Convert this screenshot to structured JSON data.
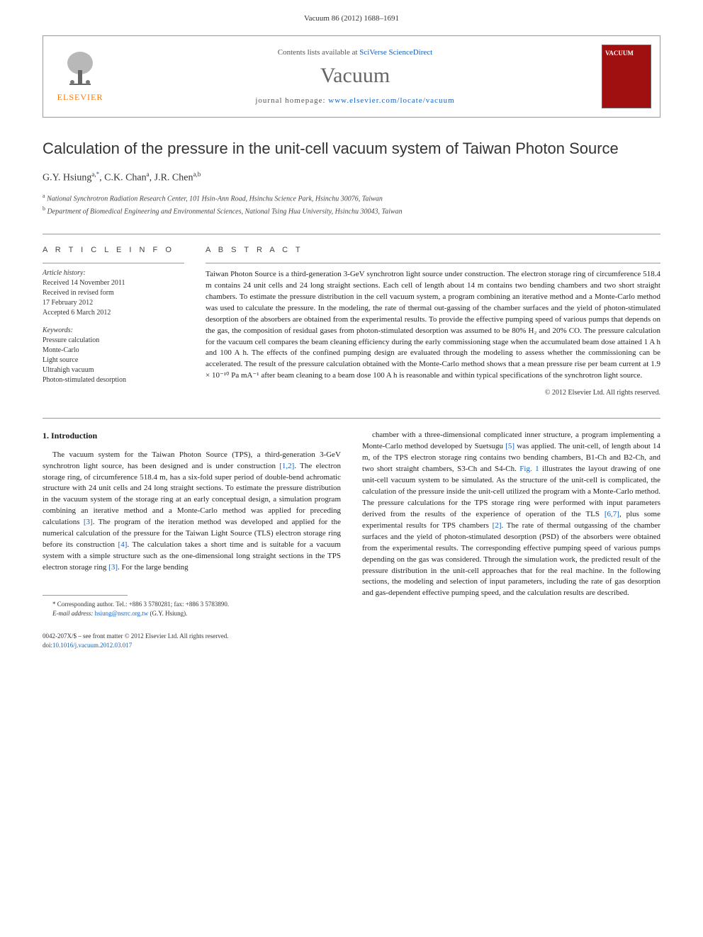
{
  "header": {
    "citation": "Vacuum 86 (2012) 1688–1691"
  },
  "masthead": {
    "publisher": "ELSEVIER",
    "contents_prefix": "Contents lists available at ",
    "contents_link": "SciVerse ScienceDirect",
    "journal": "Vacuum",
    "homepage_prefix": "journal homepage: ",
    "homepage_link": "www.elsevier.com/locate/vacuum",
    "cover_label": "VACUUM"
  },
  "title": "Calculation of the pressure in the unit-cell vacuum system of Taiwan Photon Source",
  "authors_html": "G.Y. Hsiung",
  "author_sup1": "a,",
  "author_star": "*",
  "author2": ", C.K. Chan",
  "author_sup2": "a",
  "author3": ", J.R. Chen",
  "author_sup3": "a,b",
  "affiliations": {
    "a_sup": "a",
    "a": "National Synchrotron Radiation Research Center, 101 Hsin-Ann Road, Hsinchu Science Park, Hsinchu 30076, Taiwan",
    "b_sup": "b",
    "b": "Department of Biomedical Engineering and Environmental Sciences, National Tsing Hua University, Hsinchu 30043, Taiwan"
  },
  "info": {
    "heading": "A R T I C L E   I N F O",
    "history_label": "Article history:",
    "received": "Received 14 November 2011",
    "revised1": "Received in revised form",
    "revised2": "17 February 2012",
    "accepted": "Accepted 6 March 2012",
    "keywords_label": "Keywords:",
    "kw1": "Pressure calculation",
    "kw2": "Monte-Carlo",
    "kw3": "Light source",
    "kw4": "Ultrahigh vacuum",
    "kw5": "Photon-stimulated desorption"
  },
  "abstract": {
    "heading": "A B S T R A C T",
    "text": "Taiwan Photon Source is a third-generation 3-GeV synchrotron light source under construction. The electron storage ring of circumference 518.4 m contains 24 unit cells and 24 long straight sections. Each cell of length about 14 m contains two bending chambers and two short straight chambers. To estimate the pressure distribution in the cell vacuum system, a program combining an iterative method and a Monte-Carlo method was used to calculate the pressure. In the modeling, the rate of thermal out-gassing of the chamber surfaces and the yield of photon-stimulated desorption of the absorbers are obtained from the experimental results. To provide the effective pumping speed of various pumps that depends on the gas, the composition of residual gases from photon-stimulated desorption was assumed to be 80% H₂ and 20% CO. The pressure calculation for the vacuum cell compares the beam cleaning efficiency during the early commissioning stage when the accumulated beam dose attained 1 A h and 100 A h. The effects of the confined pumping design are evaluated through the modeling to assess whether the commissioning can be accelerated. The result of the pressure calculation obtained with the Monte-Carlo method shows that a mean pressure rise per beam current at 1.9 × 10⁻¹⁰ Pa mA⁻¹ after beam cleaning to a beam dose 100 A h is reasonable and within typical specifications of the synchrotron light source.",
    "copyright": "© 2012 Elsevier Ltd. All rights reserved."
  },
  "section1": {
    "heading": "1. Introduction",
    "para_left": "The vacuum system for the Taiwan Photon Source (TPS), a third-generation 3-GeV synchrotron light source, has been designed and is under construction [1,2]. The electron storage ring, of circumference 518.4 m, has a six-fold super period of double-bend achromatic structure with 24 unit cells and 24 long straight sections. To estimate the pressure distribution in the vacuum system of the storage ring at an early conceptual design, a simulation program combining an iterative method and a Monte-Carlo method was applied for preceding calculations [3]. The program of the iteration method was developed and applied for the numerical calculation of the pressure for the Taiwan Light Source (TLS) electron storage ring before its construction [4]. The calculation takes a short time and is suitable for a vacuum system with a simple structure such as the one-dimensional long straight sections in the TPS electron storage ring [3]. For the large bending",
    "para_right": "chamber with a three-dimensional complicated inner structure, a program implementing a Monte-Carlo method developed by Suetsugu [5] was applied. The unit-cell, of length about 14 m, of the TPS electron storage ring contains two bending chambers, B1-Ch and B2-Ch, and two short straight chambers, S3-Ch and S4-Ch. Fig. 1 illustrates the layout drawing of one unit-cell vacuum system to be simulated. As the structure of the unit-cell is complicated, the calculation of the pressure inside the unit-cell utilized the program with a Monte-Carlo method. The pressure calculations for the TPS storage ring were performed with input parameters derived from the results of the experience of operation of the TLS [6,7], plus some experimental results for TPS chambers [2]. The rate of thermal outgassing of the chamber surfaces and the yield of photon-stimulated desorption (PSD) of the absorbers were obtained from the experimental results. The corresponding effective pumping speed of various pumps depending on the gas was considered. Through the simulation work, the predicted result of the pressure distribution in the unit-cell approaches that for the real machine. In the following sections, the modeling and selection of input parameters, including the rate of gas desorption and gas-dependent effective pumping speed, and the calculation results are described."
  },
  "footnote": {
    "corr": "* Corresponding author. Tel.: +886 3 5780281; fax: +886 3 5783890.",
    "email_label": "E-mail address: ",
    "email": "hsiung@nsrrc.org.tw",
    "email_suffix": " (G.Y. Hsiung)."
  },
  "footer": {
    "issn": "0042-207X/$ – see front matter © 2012 Elsevier Ltd. All rights reserved.",
    "doi_label": "doi:",
    "doi": "10.1016/j.vacuum.2012.03.017"
  },
  "refs": {
    "r12": "[1,2]",
    "r3a": "[3]",
    "r4": "[4]",
    "r3b": "[3]",
    "r5": "[5]",
    "fig1": "Fig. 1",
    "r67": "[6,7]",
    "r2": "[2]"
  },
  "colors": {
    "link": "#1560bd",
    "publisher": "#ff7700",
    "cover_bg": "#a01010",
    "border": "#999999",
    "text": "#1a1a1a"
  }
}
